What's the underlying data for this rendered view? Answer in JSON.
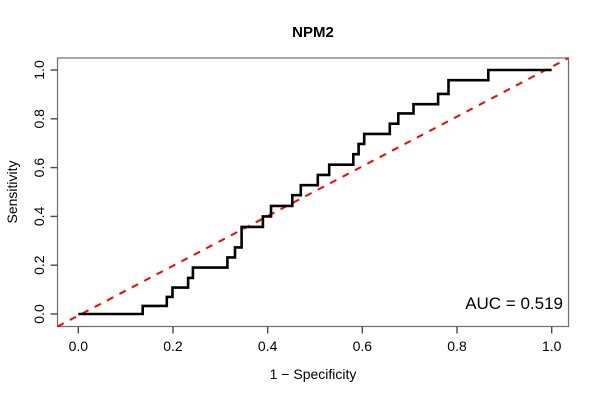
{
  "figure": {
    "title": "NPM2",
    "x_axis": {
      "label": "1 − Specificity",
      "tick_labels": [
        "0.0",
        "0.2",
        "0.4",
        "0.6",
        "0.8",
        "1.0"
      ],
      "tick_values": [
        0.0,
        0.2,
        0.4,
        0.6,
        0.8,
        1.0
      ]
    },
    "y_axis": {
      "label": "Sensitivity",
      "tick_labels": [
        "0.0",
        "0.2",
        "0.4",
        "0.6",
        "0.8",
        "1.0"
      ],
      "tick_values": [
        0.0,
        0.2,
        0.4,
        0.6,
        0.8,
        1.0
      ]
    },
    "annotation": {
      "auc_label": "AUC = 0.519"
    }
  },
  "chart_data": {
    "type": "line",
    "subtype": "roc-step-curve",
    "title": "NPM2",
    "xlabel": "1 − Specificity",
    "ylabel": "Sensitivity",
    "xlim": [
      0,
      1
    ],
    "ylim": [
      0,
      1
    ],
    "grid": false,
    "legend": "none",
    "auc": 0.519,
    "reference_line": {
      "from": [
        0,
        0
      ],
      "to": [
        1,
        1
      ],
      "style": "dashed",
      "color": "#ff0000"
    },
    "series": [
      {
        "name": "ROC curve",
        "color": "#000000",
        "step": true,
        "points": [
          [
            0.0,
            0.0
          ],
          [
            0.136,
            0.0
          ],
          [
            0.136,
            0.033
          ],
          [
            0.187,
            0.033
          ],
          [
            0.187,
            0.07
          ],
          [
            0.199,
            0.07
          ],
          [
            0.199,
            0.108
          ],
          [
            0.232,
            0.108
          ],
          [
            0.232,
            0.148
          ],
          [
            0.242,
            0.148
          ],
          [
            0.242,
            0.19
          ],
          [
            0.315,
            0.19
          ],
          [
            0.315,
            0.232
          ],
          [
            0.331,
            0.232
          ],
          [
            0.331,
            0.273
          ],
          [
            0.345,
            0.273
          ],
          [
            0.345,
            0.357
          ],
          [
            0.39,
            0.357
          ],
          [
            0.39,
            0.4
          ],
          [
            0.407,
            0.4
          ],
          [
            0.407,
            0.443
          ],
          [
            0.452,
            0.443
          ],
          [
            0.452,
            0.487
          ],
          [
            0.47,
            0.487
          ],
          [
            0.47,
            0.528
          ],
          [
            0.506,
            0.528
          ],
          [
            0.506,
            0.57
          ],
          [
            0.53,
            0.57
          ],
          [
            0.53,
            0.612
          ],
          [
            0.581,
            0.612
          ],
          [
            0.581,
            0.655
          ],
          [
            0.592,
            0.655
          ],
          [
            0.592,
            0.697
          ],
          [
            0.604,
            0.697
          ],
          [
            0.604,
            0.738
          ],
          [
            0.658,
            0.738
          ],
          [
            0.658,
            0.78
          ],
          [
            0.676,
            0.78
          ],
          [
            0.676,
            0.822
          ],
          [
            0.708,
            0.822
          ],
          [
            0.708,
            0.86
          ],
          [
            0.76,
            0.86
          ],
          [
            0.76,
            0.902
          ],
          [
            0.782,
            0.902
          ],
          [
            0.782,
            0.958
          ],
          [
            0.866,
            0.958
          ],
          [
            0.866,
            1.0
          ],
          [
            1.0,
            1.0
          ]
        ]
      }
    ]
  }
}
